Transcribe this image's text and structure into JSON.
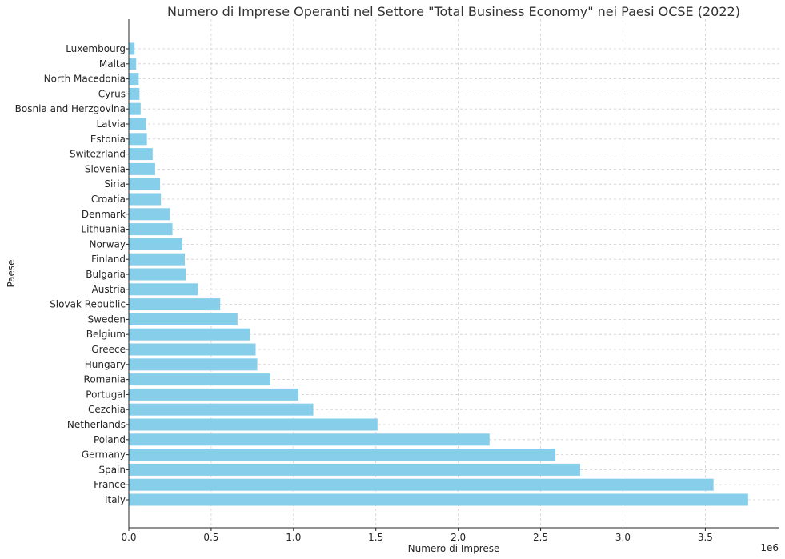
{
  "chart_data": {
    "type": "bar",
    "orientation": "horizontal",
    "title": "Numero di Imprese Operanti nel Settore \"Total Business Economy\" nei Paesi OCSE (2022)",
    "xlabel": "Numero di Imprese",
    "ylabel": "Paese",
    "offset_text": "1e6",
    "xlim": [
      0,
      3950000
    ],
    "x_ticks": [
      0,
      500000,
      1000000,
      1500000,
      2000000,
      2500000,
      3000000,
      3500000
    ],
    "x_tick_labels": [
      "0.0",
      "0.5",
      "1.0",
      "1.5",
      "2.0",
      "2.5",
      "3.0",
      "3.5"
    ],
    "grid": true,
    "bar_color": "#87CEEB",
    "categories": [
      "Italy",
      "France",
      "Spain",
      "Germany",
      "Poland",
      "Netherlands",
      "Cezchia",
      "Portugal",
      "Romania",
      "Hungary",
      "Greece",
      "Belgium",
      "Sweden",
      "Slovak Republic",
      "Austria",
      "Bulgaria",
      "Finland",
      "Norway",
      "Lithuania",
      "Denmark",
      "Croatia",
      "Siria",
      "Slovenia",
      "Switezrland",
      "Estonia",
      "Latvia",
      "Bosnia and Herzgovina",
      "Cyrus",
      "North Macedonia",
      "Malta",
      "Luxembourg"
    ],
    "values": [
      3760000,
      3550000,
      2740000,
      2590000,
      2190000,
      1510000,
      1120000,
      1030000,
      860000,
      780000,
      770000,
      735000,
      660000,
      555000,
      420000,
      345000,
      340000,
      325000,
      265000,
      250000,
      195000,
      190000,
      160000,
      145000,
      110000,
      105000,
      72000,
      65000,
      60000,
      45000,
      35000
    ]
  }
}
